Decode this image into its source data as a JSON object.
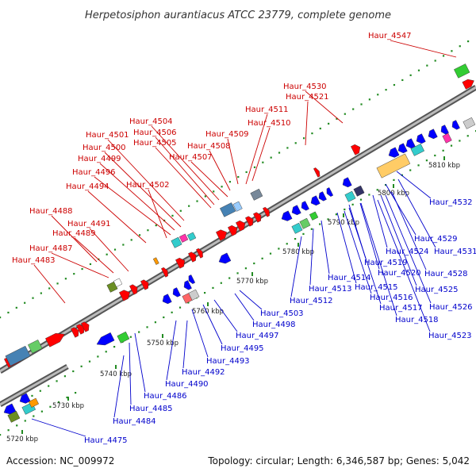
{
  "title": "Herpetosiphon aurantiacus ATCC 23779, complete genome",
  "footer": {
    "accession": "Accession: NC_009972",
    "summary": "Topology: circular; Length: 6,346,587 bp; Genes: 5,042"
  },
  "colors": {
    "forward_label": "#cc0000",
    "reverse_label": "#0000cc",
    "forward_gene": "#ff0000",
    "reverse_gene": "#0000ff",
    "backbone": "#888888",
    "tick": "#228b22"
  },
  "scale_ticks": [
    "5720 kbp",
    "5730 kbp",
    "5740 kbp",
    "5750 kbp",
    "5760 kbp",
    "5770 kbp",
    "5780 kbp",
    "5790 kbp",
    "5800 kbp",
    "5810 kbp"
  ],
  "forward_labels": [
    "Haur_4547",
    "Haur_4530",
    "Haur_4521",
    "Haur_4511",
    "Haur_4510",
    "Haur_4509",
    "Haur_4508",
    "Haur_4507",
    "Haur_4504",
    "Haur_4506",
    "Haur_4505",
    "Haur_4501",
    "Haur_4500",
    "Haur_4499",
    "Haur_4496",
    "Haur_4494",
    "Haur_4502",
    "Haur_4488",
    "Haur_4491",
    "Haur_4489",
    "Haur_4487",
    "Haur_4483"
  ],
  "reverse_labels": [
    "Haur_4532",
    "Haur_4529",
    "Haur_4531",
    "Haur_4524",
    "Haur_4528",
    "Haur_4519",
    "Haur_4520",
    "Haur_4525",
    "Haur_4514",
    "Haur_4515",
    "Haur_4513",
    "Haur_4516",
    "Haur_4526",
    "Haur_4517",
    "Haur_4512",
    "Haur_4518",
    "Haur_4503",
    "Haur_4523",
    "Haur_4498",
    "Haur_4497",
    "Haur_4495",
    "Haur_4493",
    "Haur_4492",
    "Haur_4490",
    "Haur_4486",
    "Haur_4485",
    "Haur_4484",
    "Haur_4475"
  ]
}
